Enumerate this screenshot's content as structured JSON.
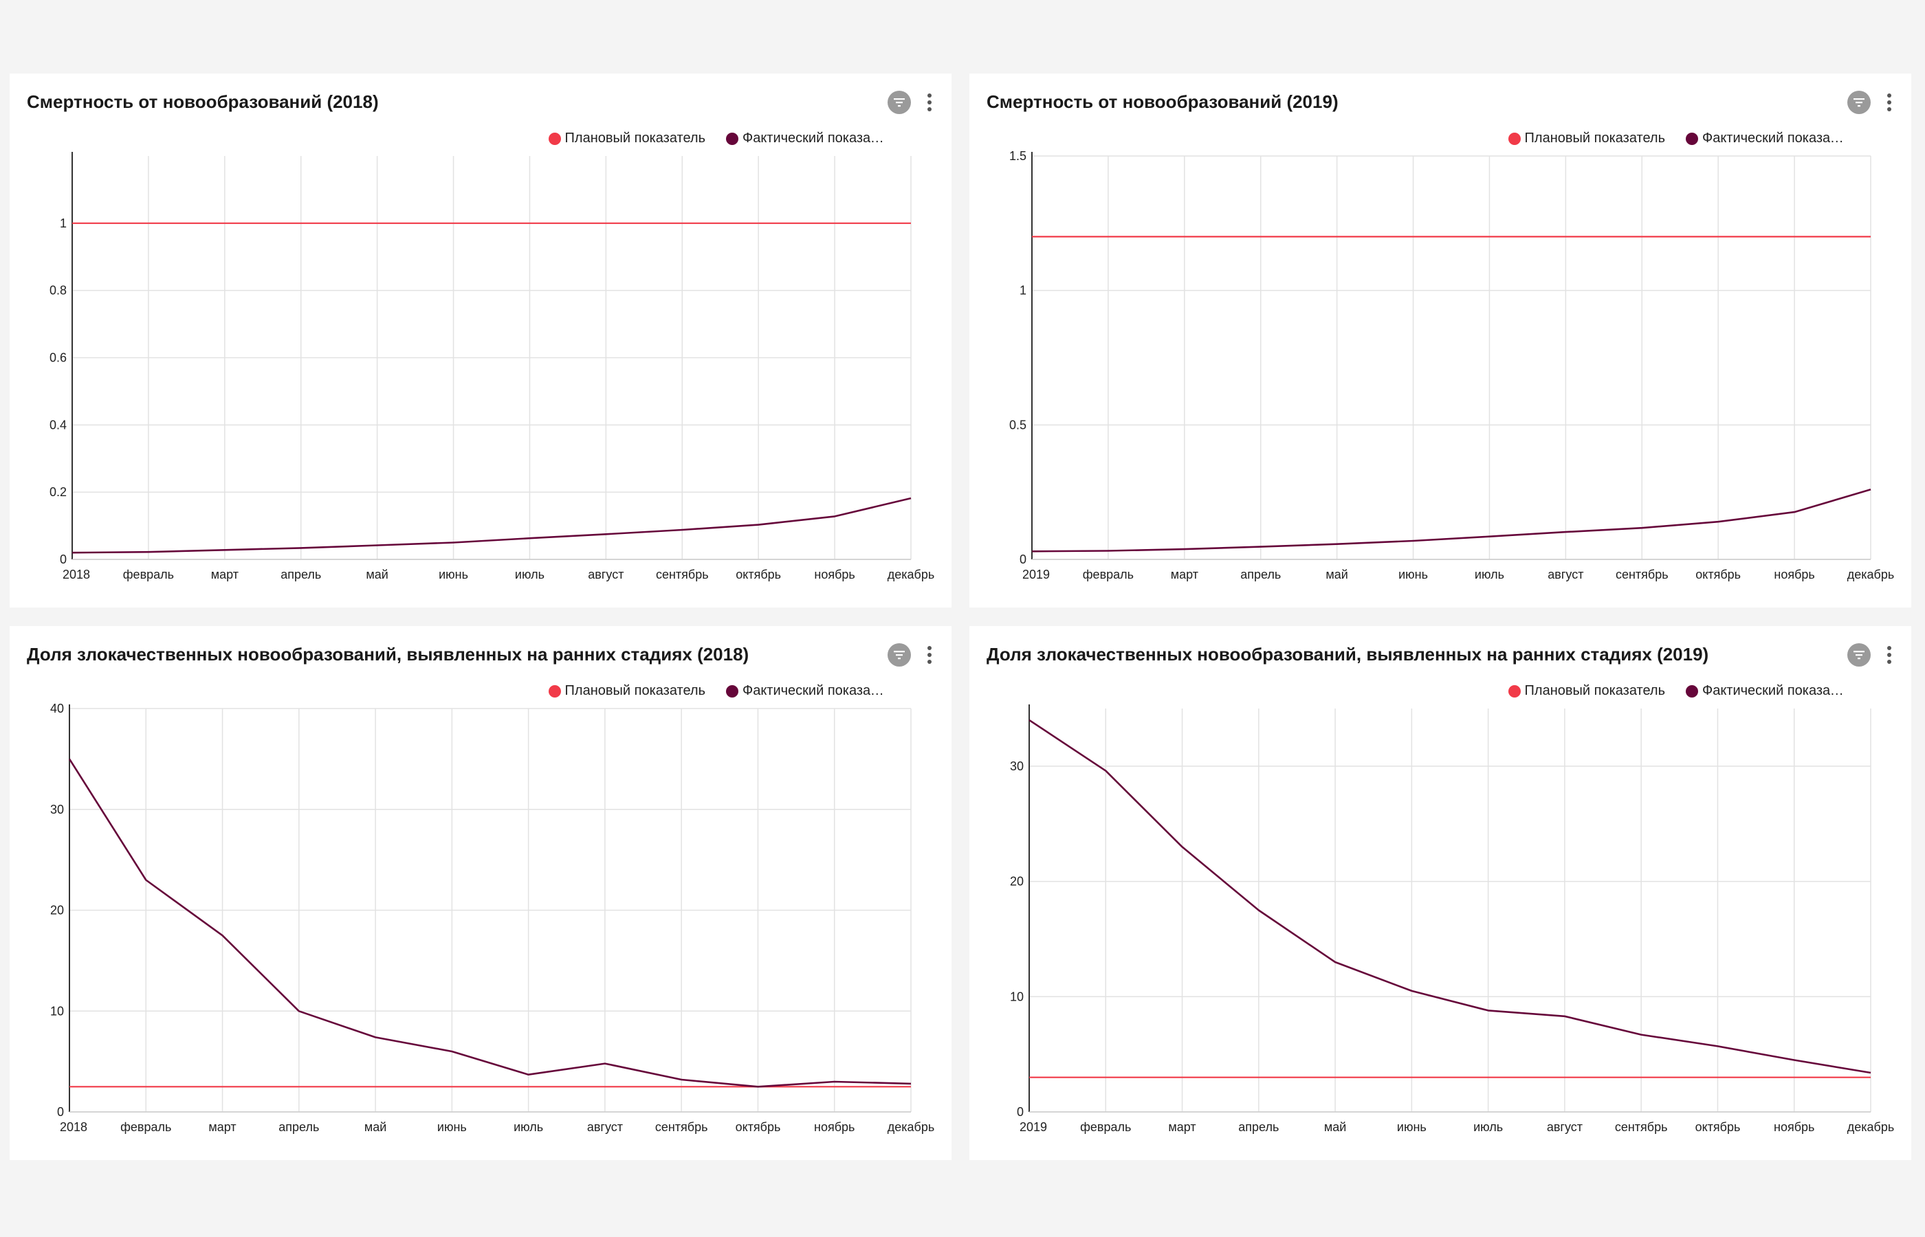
{
  "legend": {
    "plan": "Плановый показатель",
    "fact": "Фактический показате...",
    "plan_color": "#f13a48",
    "fact_color": "#66063a"
  },
  "icons": {
    "filter": "filter-icon",
    "menu": "more-vertical-icon"
  },
  "chart_data": [
    {
      "type": "line",
      "title": "Смертность от новообразований (2018)",
      "categories": [
        "2018",
        "февраль",
        "март",
        "апрель",
        "май",
        "июнь",
        "июль",
        "август",
        "сентябрь",
        "октябрь",
        "ноябрь",
        "декабрь"
      ],
      "ylim": [
        0,
        1.2
      ],
      "yticks": [
        0,
        0.2,
        0.4,
        0.6,
        0.8,
        1
      ],
      "series": [
        {
          "name": "Плановый показатель",
          "color": "#f13a48",
          "values": [
            1,
            1,
            1,
            1,
            1,
            1,
            1,
            1,
            1,
            1,
            1,
            1
          ]
        },
        {
          "name": "Фактический показате...",
          "color": "#66063a",
          "values": [
            0.02,
            0.022,
            0.028,
            0.034,
            0.042,
            0.05,
            0.063,
            0.075,
            0.088,
            0.103,
            0.128,
            0.182
          ]
        }
      ]
    },
    {
      "type": "line",
      "title": "Смертность от новообразований (2019)",
      "categories": [
        "2019",
        "февраль",
        "март",
        "апрель",
        "май",
        "июнь",
        "июль",
        "август",
        "сентябрь",
        "октябрь",
        "ноябрь",
        "декабрь"
      ],
      "ylim": [
        0,
        1.5
      ],
      "yticks": [
        0,
        0.5,
        1,
        1.5
      ],
      "series": [
        {
          "name": "Плановый показатель",
          "color": "#f13a48",
          "values": [
            1.2,
            1.2,
            1.2,
            1.2,
            1.2,
            1.2,
            1.2,
            1.2,
            1.2,
            1.2,
            1.2,
            1.2
          ]
        },
        {
          "name": "Фактический показате...",
          "color": "#66063a",
          "values": [
            0.03,
            0.032,
            0.038,
            0.047,
            0.057,
            0.069,
            0.085,
            0.102,
            0.117,
            0.14,
            0.176,
            0.26
          ]
        }
      ]
    },
    {
      "type": "line",
      "title": "Доля злокачественных новообразований, выявленных на ранних стадиях (2018)",
      "categories": [
        "2018",
        "февраль",
        "март",
        "апрель",
        "май",
        "июнь",
        "июль",
        "август",
        "сентябрь",
        "октябрь",
        "ноябрь",
        "декабрь"
      ],
      "ylim": [
        0,
        40
      ],
      "yticks": [
        0,
        10,
        20,
        30,
        40
      ],
      "series": [
        {
          "name": "Плановый показатель",
          "color": "#f13a48",
          "values": [
            2.5,
            2.5,
            2.5,
            2.5,
            2.5,
            2.5,
            2.5,
            2.5,
            2.5,
            2.5,
            2.5,
            2.5
          ]
        },
        {
          "name": "Фактический показате...",
          "color": "#66063a",
          "values": [
            35,
            23,
            17.5,
            10,
            7.4,
            6,
            3.7,
            4.8,
            3.2,
            2.5,
            3,
            2.8
          ]
        }
      ]
    },
    {
      "type": "line",
      "title": "Доля злокачественных новообразований, выявленных на ранних стадиях (2019)",
      "categories": [
        "2019",
        "февраль",
        "март",
        "апрель",
        "май",
        "июнь",
        "июль",
        "август",
        "сентябрь",
        "октябрь",
        "ноябрь",
        "декабрь"
      ],
      "ylim": [
        0,
        35
      ],
      "yticks": [
        0,
        10,
        20,
        30
      ],
      "series": [
        {
          "name": "Плановый показатель",
          "color": "#f13a48",
          "values": [
            3,
            3,
            3,
            3,
            3,
            3,
            3,
            3,
            3,
            3,
            3,
            3
          ]
        },
        {
          "name": "Фактический показате...",
          "color": "#66063a",
          "values": [
            34,
            29.6,
            23,
            17.5,
            13,
            10.5,
            8.8,
            8.3,
            6.7,
            5.7,
            4.5,
            3.4
          ]
        }
      ]
    }
  ]
}
